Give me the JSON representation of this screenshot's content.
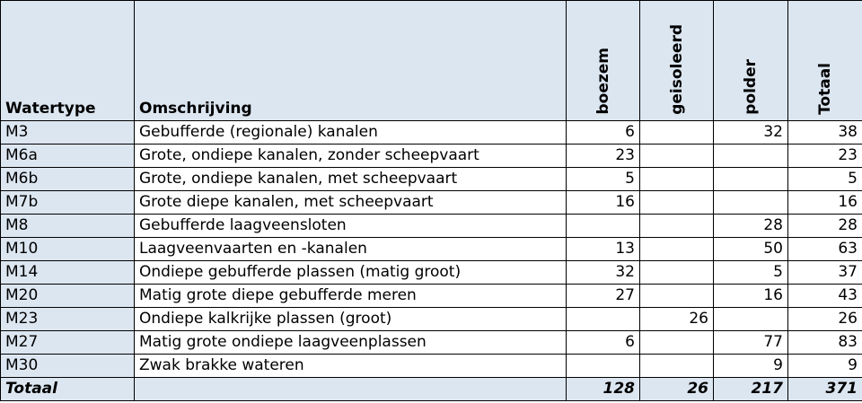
{
  "table": {
    "headers": {
      "watertype": "Watertype",
      "omschrijving": "Omschrijving",
      "boezem": "boezem",
      "geisoleerd": "geisoleerd",
      "polder": "polder",
      "totaal": "Totaal"
    },
    "rows": [
      {
        "code": "M3",
        "desc": "Gebufferde (regionale) kanalen",
        "boezem": "6",
        "geisoleerd": "",
        "polder": "32",
        "totaal": "38"
      },
      {
        "code": "M6a",
        "desc": "Grote, ondiepe kanalen, zonder scheepvaart",
        "boezem": "23",
        "geisoleerd": "",
        "polder": "",
        "totaal": "23"
      },
      {
        "code": "M6b",
        "desc": "Grote, ondiepe kanalen, met scheepvaart",
        "boezem": "5",
        "geisoleerd": "",
        "polder": "",
        "totaal": "5"
      },
      {
        "code": "M7b",
        "desc": "Grote diepe kanalen, met scheepvaart",
        "boezem": "16",
        "geisoleerd": "",
        "polder": "",
        "totaal": "16"
      },
      {
        "code": "M8",
        "desc": "Gebufferde laagveensloten",
        "boezem": "",
        "geisoleerd": "",
        "polder": "28",
        "totaal": "28"
      },
      {
        "code": "M10",
        "desc": "Laagveenvaarten en -kanalen",
        "boezem": "13",
        "geisoleerd": "",
        "polder": "50",
        "totaal": "63"
      },
      {
        "code": "M14",
        "desc": "Ondiepe gebufferde plassen (matig groot)",
        "boezem": "32",
        "geisoleerd": "",
        "polder": "5",
        "totaal": "37"
      },
      {
        "code": "M20",
        "desc": "Matig grote diepe gebufferde meren",
        "boezem": "27",
        "geisoleerd": "",
        "polder": "16",
        "totaal": "43"
      },
      {
        "code": "M23",
        "desc": "Ondiepe kalkrijke plassen (groot)",
        "boezem": "",
        "geisoleerd": "26",
        "polder": "",
        "totaal": "26"
      },
      {
        "code": "M27",
        "desc": "Matig grote ondiepe laagveenplassen",
        "boezem": "6",
        "geisoleerd": "",
        "polder": "77",
        "totaal": "83"
      },
      {
        "code": "M30",
        "desc": "Zwak brakke wateren",
        "boezem": "",
        "geisoleerd": "",
        "polder": "9",
        "totaal": "9"
      }
    ],
    "total": {
      "label": "Totaal",
      "desc": "",
      "boezem": "128",
      "geisoleerd": "26",
      "polder": "217",
      "totaal": "371"
    }
  },
  "colors": {
    "header_bg": "#dce6f1",
    "border": "#000000"
  }
}
